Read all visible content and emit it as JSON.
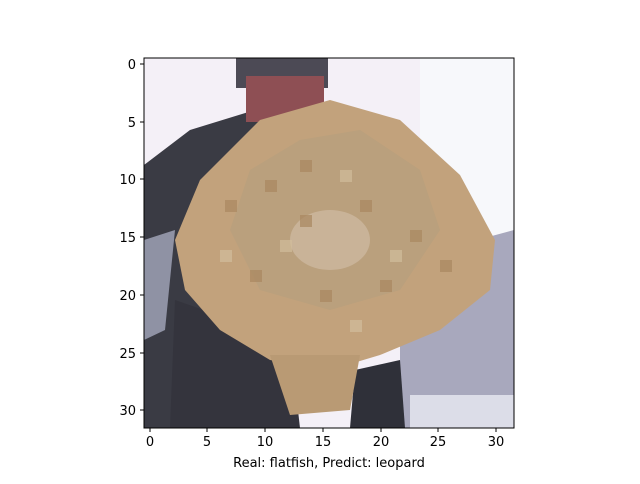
{
  "axes": {
    "x_ticks": [
      "0",
      "5",
      "10",
      "15",
      "20",
      "25",
      "30"
    ],
    "y_ticks": [
      "0",
      "5",
      "10",
      "15",
      "20",
      "25",
      "30"
    ],
    "xlabel": "Real: flatfish, Predict: leopard"
  },
  "image": {
    "description_subject": "pixelated photo of a person holding a flatfish",
    "palette": {
      "background": "#f4f0f7",
      "fish": "#c2a27c",
      "fish_dark": "#a98760",
      "clothing": "#3a3b44",
      "hair": "#4c4a55",
      "face": "#8e4f54",
      "right_bg": "#a8a8bd",
      "bottom_right": "#dcdde8"
    }
  }
}
